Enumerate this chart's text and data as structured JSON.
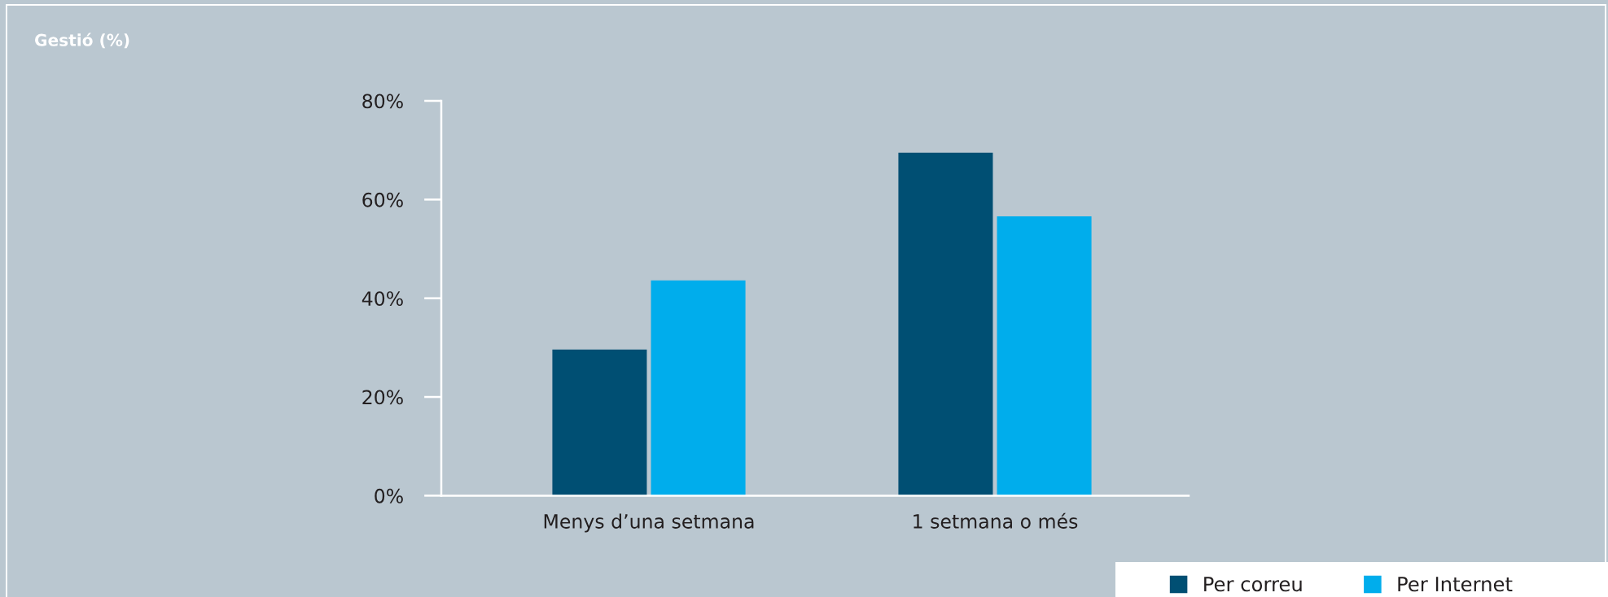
{
  "chart_data": {
    "type": "bar",
    "title": "Gestió (%)",
    "categories": [
      "Menys d’una setmana",
      "1 setmana o més"
    ],
    "series": [
      {
        "name": "Per correu",
        "color": "#004f73",
        "values": [
          29.6,
          69.5
        ]
      },
      {
        "name": "Per Internet",
        "color": "#00adec",
        "values": [
          43.6,
          56.6
        ]
      }
    ],
    "ylim": [
      0,
      80
    ],
    "yticks": [
      {
        "value": 0,
        "label": "0%"
      },
      {
        "value": 20,
        "label": "20%"
      },
      {
        "value": 40,
        "label": "40%"
      },
      {
        "value": 60,
        "label": "60%"
      },
      {
        "value": 80,
        "label": "80%"
      }
    ],
    "grid": false,
    "legend": "bottom right"
  }
}
